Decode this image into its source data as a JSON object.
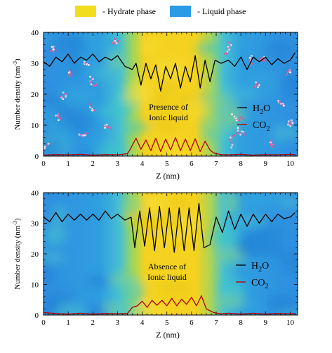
{
  "legend": {
    "items": [
      {
        "label": "- Hydrate phase",
        "color": "#f2dc1e"
      },
      {
        "label": "- Liquid phase",
        "color": "#2b9be6"
      }
    ]
  },
  "colors": {
    "liquid": "#2f8fe0",
    "liquid_edge": "#3cc0cf",
    "hydrate": "#f4d21f",
    "hydrate_edge": "#a8d45a",
    "h2o": "#000000",
    "co2": "#b10000",
    "molecule": "#d07ab8"
  },
  "chart_data": [
    {
      "type": "line",
      "annotation": [
        "Presence of",
        "Ionic liquid"
      ],
      "xlabel": "Z (nm)",
      "ylabel": "Number density (nm",
      "ylabel_sup": "-3",
      "ylabel_end": ")",
      "xlim": [
        0,
        10.3
      ],
      "ylim": [
        0,
        40
      ],
      "xticks": [
        "0",
        "1",
        "2",
        "3",
        "4",
        "5",
        "6",
        "7",
        "8",
        "9",
        "10"
      ],
      "yticks": [
        "0",
        "10",
        "20",
        "30",
        "40"
      ],
      "hydrate_region": [
        3.4,
        6.9
      ],
      "has_molecules": true,
      "legend": [
        {
          "name": "H",
          "sub": "2",
          "end": "O"
        },
        {
          "name": "CO",
          "sub": "2",
          "end": ""
        }
      ],
      "series": [
        {
          "x": [
            0,
            0.25,
            0.5,
            0.75,
            1.0,
            1.25,
            1.5,
            1.75,
            2.0,
            2.25,
            2.5,
            2.75,
            3.0,
            3.3,
            3.6,
            3.75,
            3.95,
            4.15,
            4.35,
            4.55,
            4.75,
            4.95,
            5.15,
            5.35,
            5.55,
            5.75,
            5.95,
            6.15,
            6.35,
            6.55,
            6.75,
            6.95,
            7.2,
            7.5,
            7.75,
            8.0,
            8.25,
            8.5,
            8.75,
            9.0,
            9.25,
            9.5,
            9.75,
            10.0,
            10.2
          ],
          "values": [
            30.5,
            29,
            32,
            30.5,
            33,
            30,
            32,
            31,
            33,
            30.5,
            32,
            31,
            32.5,
            29,
            28,
            30,
            23,
            30,
            25,
            29.5,
            21,
            29,
            25,
            30,
            22,
            29,
            24,
            32.5,
            22,
            31,
            24,
            31,
            30,
            31,
            29,
            32,
            28,
            32,
            30.5,
            32,
            29.5,
            31.5,
            30,
            31,
            33.5
          ]
        },
        {
          "x": [
            0,
            0.5,
            1.0,
            1.5,
            2.0,
            2.5,
            3.0,
            3.4,
            3.5,
            3.75,
            3.95,
            4.15,
            4.35,
            4.55,
            4.75,
            4.95,
            5.15,
            5.35,
            5.55,
            5.75,
            5.95,
            6.15,
            6.35,
            6.55,
            6.75,
            6.9,
            7.2,
            7.5,
            8.0,
            8.5,
            9.0,
            9.5,
            10.0,
            10.2
          ],
          "values": [
            0.3,
            0.5,
            0.4,
            0.6,
            0.3,
            0.5,
            0.4,
            0.8,
            2,
            5.8,
            2.2,
            5.2,
            1.8,
            5.8,
            1.5,
            5.5,
            2,
            6,
            1.8,
            5.5,
            1.8,
            5.6,
            1.5,
            4.8,
            2,
            1,
            0.5,
            0.4,
            0.6,
            0.3,
            0.5,
            0.4,
            0.6,
            0.4
          ]
        }
      ]
    },
    {
      "type": "line",
      "annotation": [
        "Absence of",
        "Ionic liquid"
      ],
      "xlabel": "Z (nm)",
      "ylabel": "Number density (nm",
      "ylabel_sup": "-3",
      "ylabel_end": ")",
      "xlim": [
        0,
        10.3
      ],
      "ylim": [
        0,
        40
      ],
      "xticks": [
        "0",
        "1",
        "2",
        "3",
        "4",
        "5",
        "6",
        "7",
        "8",
        "9",
        "10"
      ],
      "yticks": [
        "0",
        "10",
        "20",
        "30",
        "40"
      ],
      "hydrate_region": [
        3.4,
        6.9
      ],
      "has_molecules": false,
      "legend": [
        {
          "name": "H",
          "sub": "2",
          "end": "O"
        },
        {
          "name": "CO",
          "sub": "2",
          "end": ""
        }
      ],
      "series": [
        {
          "x": [
            0,
            0.25,
            0.5,
            0.75,
            1.0,
            1.25,
            1.5,
            1.75,
            2.0,
            2.25,
            2.5,
            2.75,
            3.0,
            3.3,
            3.55,
            3.7,
            3.9,
            4.1,
            4.3,
            4.5,
            4.7,
            4.9,
            5.1,
            5.3,
            5.5,
            5.7,
            5.9,
            6.1,
            6.3,
            6.5,
            6.75,
            7.0,
            7.25,
            7.5,
            7.75,
            8.0,
            8.25,
            8.5,
            8.75,
            9.0,
            9.25,
            9.5,
            9.75,
            10.0,
            10.2
          ],
          "values": [
            32,
            30.5,
            33.5,
            30.5,
            33,
            31,
            33,
            31,
            33,
            31,
            34,
            31.5,
            33,
            31,
            32,
            22,
            34,
            22.5,
            35,
            21,
            35.5,
            22,
            35,
            20.5,
            35,
            21,
            35,
            21,
            36.5,
            22,
            23,
            32,
            27,
            34,
            28,
            33,
            29,
            33,
            30,
            33,
            30.5,
            33,
            31.5,
            32,
            33.5
          ]
        },
        {
          "x": [
            0,
            0.5,
            1.0,
            1.5,
            2.0,
            2.5,
            3.0,
            3.4,
            3.6,
            3.8,
            4.0,
            4.2,
            4.4,
            4.6,
            4.8,
            5.0,
            5.2,
            5.4,
            5.6,
            5.8,
            6.0,
            6.2,
            6.4,
            6.6,
            6.9,
            7.2,
            7.5,
            8.0,
            8.5,
            9.0,
            9.5,
            10.0,
            10.2
          ],
          "values": [
            0.8,
            0.5,
            0.3,
            0.6,
            0.3,
            0.5,
            0.4,
            0.5,
            2.5,
            3,
            4.5,
            2.5,
            4.8,
            3.2,
            4.8,
            3,
            5.5,
            3,
            5.2,
            3.5,
            5.8,
            3,
            6.3,
            2,
            0.8,
            0.4,
            0.6,
            0.3,
            0.6,
            0.3,
            0.5,
            0.4,
            0.5
          ]
        }
      ]
    }
  ]
}
